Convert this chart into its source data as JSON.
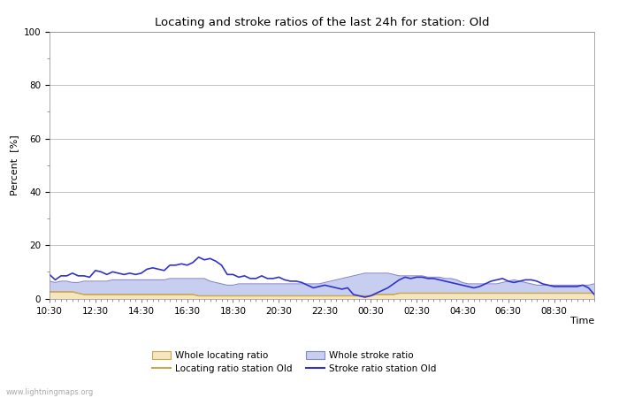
{
  "title": "Locating and stroke ratios of the last 24h for station: Old",
  "xlabel": "Time",
  "ylabel": "Percent  [%]",
  "ylim": [
    0,
    100
  ],
  "yticks": [
    0,
    20,
    40,
    60,
    80,
    100
  ],
  "watermark": "www.lightningmaps.org",
  "x_labels": [
    "10:30",
    "12:30",
    "14:30",
    "16:30",
    "18:30",
    "20:30",
    "22:30",
    "00:30",
    "02:30",
    "04:30",
    "06:30",
    "08:30"
  ],
  "whole_locating_fill_color": "#f5e6c0",
  "whole_locating_line_color": "#c8a850",
  "whole_stroke_fill_color": "#c8cef0",
  "whole_stroke_line_color": "#8888cc",
  "station_locating_line_color": "#c8a850",
  "station_stroke_line_color": "#3333cc",
  "whole_locating": [
    2.5,
    2.5,
    2.5,
    2.5,
    2.5,
    2.0,
    1.5,
    1.5,
    1.5,
    1.5,
    1.5,
    1.5,
    1.5,
    1.5,
    1.5,
    1.5,
    1.5,
    1.5,
    1.5,
    1.5,
    1.5,
    1.5,
    1.5,
    1.5,
    1.5,
    1.5,
    1.0,
    1.0,
    1.0,
    1.0,
    1.0,
    1.0,
    1.0,
    1.0,
    1.0,
    1.0,
    1.0,
    1.0,
    1.0,
    1.0,
    1.0,
    1.0,
    1.0,
    1.0,
    1.0,
    1.0,
    1.0,
    1.0,
    1.0,
    1.0,
    1.0,
    1.0,
    1.0,
    1.0,
    1.0,
    1.0,
    1.0,
    1.5,
    1.5,
    1.5,
    1.5,
    2.0,
    2.0,
    2.0,
    2.0,
    2.0,
    2.0,
    2.0,
    2.0,
    2.0,
    2.0,
    2.0,
    2.0,
    2.0,
    2.0,
    2.0,
    2.0,
    2.0,
    2.0,
    2.0,
    2.0,
    2.0,
    2.0,
    2.0,
    2.0,
    2.0,
    2.0,
    2.0,
    2.0,
    2.0,
    2.0,
    2.0,
    2.0,
    2.0,
    2.0,
    2.0
  ],
  "whole_stroke": [
    6.5,
    6.0,
    6.5,
    6.5,
    6.0,
    6.0,
    6.5,
    6.5,
    6.5,
    6.5,
    6.5,
    7.0,
    7.0,
    7.0,
    7.0,
    7.0,
    7.0,
    7.0,
    7.0,
    7.0,
    7.0,
    7.5,
    7.5,
    7.5,
    7.5,
    7.5,
    7.5,
    7.5,
    6.5,
    6.0,
    5.5,
    5.0,
    5.0,
    5.5,
    5.5,
    5.5,
    5.5,
    5.5,
    5.5,
    5.5,
    5.5,
    5.5,
    5.5,
    5.5,
    5.5,
    5.5,
    5.5,
    5.5,
    6.0,
    6.5,
    7.0,
    7.5,
    8.0,
    8.5,
    9.0,
    9.5,
    9.5,
    9.5,
    9.5,
    9.5,
    9.0,
    8.5,
    8.5,
    8.5,
    8.5,
    8.5,
    8.0,
    8.0,
    8.0,
    7.5,
    7.5,
    7.0,
    6.0,
    5.5,
    5.5,
    5.5,
    5.5,
    5.5,
    5.5,
    6.0,
    6.5,
    7.0,
    6.5,
    6.0,
    5.5,
    5.0,
    5.0,
    5.0,
    5.0,
    5.0,
    5.0,
    5.0,
    5.0,
    5.0,
    5.0,
    5.5
  ],
  "station_locating": [
    2.5,
    2.5,
    2.5,
    2.5,
    2.5,
    2.0,
    1.5,
    1.5,
    1.5,
    1.5,
    1.5,
    1.5,
    1.5,
    1.5,
    1.5,
    1.5,
    1.5,
    1.5,
    1.5,
    1.5,
    1.5,
    1.5,
    1.5,
    1.5,
    1.5,
    1.5,
    1.0,
    1.0,
    1.0,
    1.0,
    1.0,
    1.0,
    1.0,
    1.0,
    1.0,
    1.0,
    1.0,
    1.0,
    1.0,
    1.0,
    1.0,
    1.0,
    1.0,
    1.0,
    1.0,
    1.0,
    1.0,
    1.0,
    1.0,
    1.0,
    1.0,
    1.0,
    1.0,
    1.0,
    1.0,
    1.0,
    1.0,
    1.5,
    1.5,
    1.5,
    1.5,
    2.0,
    2.0,
    2.0,
    2.0,
    2.0,
    2.0,
    2.0,
    2.0,
    2.0,
    2.0,
    2.0,
    2.0,
    2.0,
    2.0,
    2.0,
    2.0,
    2.0,
    2.0,
    2.0,
    2.0,
    2.0,
    2.0,
    2.0,
    2.0,
    2.0,
    2.0,
    2.0,
    2.0,
    2.0,
    2.0,
    2.0,
    2.0,
    2.0,
    2.0,
    2.0
  ],
  "station_stroke": [
    9.0,
    7.0,
    8.5,
    8.5,
    9.5,
    8.5,
    8.5,
    8.0,
    10.5,
    10.0,
    9.0,
    10.0,
    9.5,
    9.0,
    9.5,
    9.0,
    9.5,
    11.0,
    11.5,
    11.0,
    10.5,
    12.5,
    12.5,
    13.0,
    12.5,
    13.5,
    15.5,
    14.5,
    15.0,
    14.0,
    12.5,
    9.0,
    9.0,
    8.0,
    8.5,
    7.5,
    7.5,
    8.5,
    7.5,
    7.5,
    8.0,
    7.0,
    6.5,
    6.5,
    6.0,
    5.0,
    4.0,
    4.5,
    5.0,
    4.5,
    4.0,
    3.5,
    4.0,
    1.5,
    1.0,
    0.5,
    1.0,
    2.0,
    3.0,
    4.0,
    5.5,
    7.0,
    8.0,
    7.5,
    8.0,
    8.0,
    7.5,
    7.5,
    7.0,
    6.5,
    6.0,
    5.5,
    5.0,
    4.5,
    4.0,
    4.5,
    5.5,
    6.5,
    7.0,
    7.5,
    6.5,
    6.0,
    6.5,
    7.0,
    7.0,
    6.5,
    5.5,
    5.0,
    4.5,
    4.5,
    4.5,
    4.5,
    4.5,
    5.0,
    4.0,
    1.5
  ],
  "n_points": 96,
  "background_color": "#ffffff",
  "grid_color": "#aaaaaa",
  "axes_color": "#888888"
}
